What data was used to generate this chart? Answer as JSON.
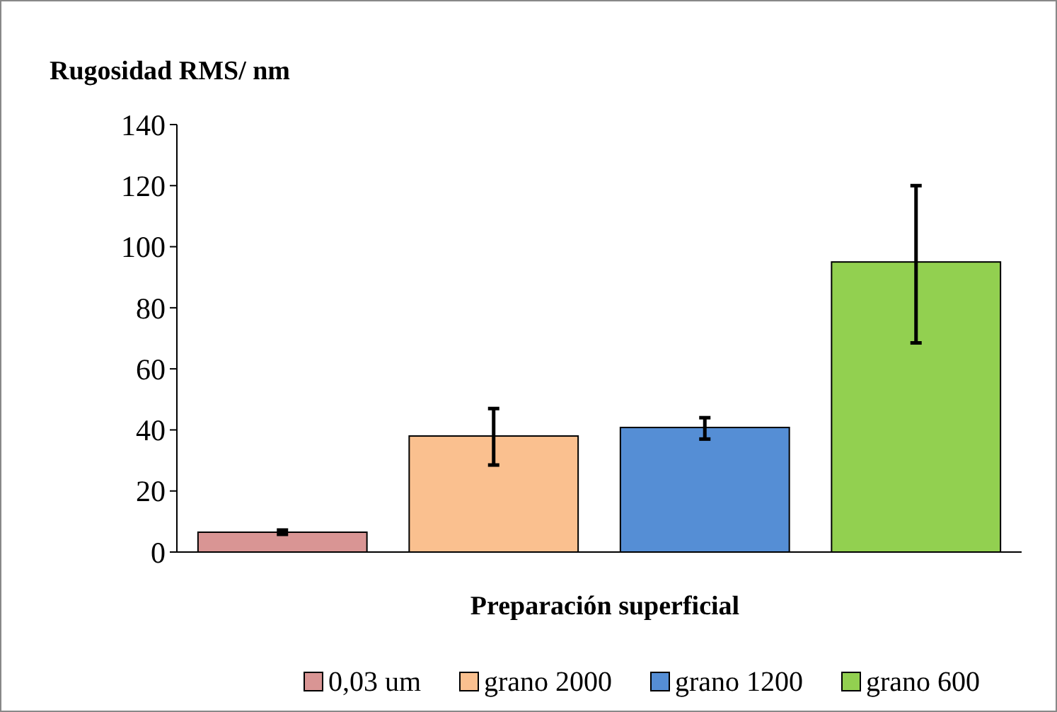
{
  "chart_data": {
    "type": "bar",
    "title": "Rugosidad RMS/ nm",
    "xlabel": "Preparación superficial",
    "categories": [
      null,
      null,
      null,
      null
    ],
    "series": [
      {
        "name": "0,03 um",
        "color": "#d99594",
        "values": [
          6.5,
          null,
          null,
          null
        ],
        "errors": [
          [
            5.8,
            7.2
          ],
          null,
          null,
          null
        ]
      },
      {
        "name": "grano 2000",
        "color": "#fac08f",
        "values": [
          null,
          38,
          null,
          null
        ],
        "errors": [
          null,
          [
            28.5,
            47
          ],
          null,
          null
        ]
      },
      {
        "name": "grano 1200",
        "color": "#558ed5",
        "values": [
          null,
          null,
          40.8,
          null
        ],
        "errors": [
          null,
          null,
          [
            37,
            44
          ],
          null
        ]
      },
      {
        "name": "grano 600",
        "color": "#92d050",
        "values": [
          null,
          null,
          null,
          95
        ],
        "errors": [
          null,
          null,
          null,
          [
            68.5,
            120
          ]
        ]
      }
    ],
    "ylim": [
      0,
      140
    ],
    "yticks": [
      0,
      20,
      40,
      60,
      80,
      100,
      120,
      140
    ],
    "grid": false,
    "legend": "bottom"
  }
}
